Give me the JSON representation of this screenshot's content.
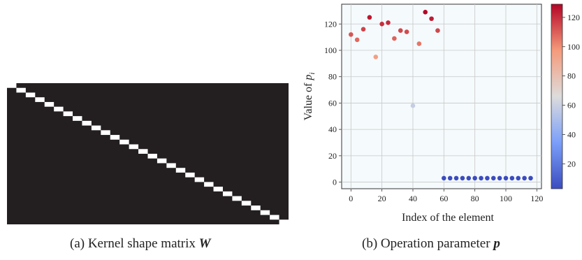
{
  "figure": {
    "caption_a": {
      "prefix": "(a) Kernel shape matrix ",
      "symbol": "W"
    },
    "caption_b": {
      "prefix": "(b) Operation parameter ",
      "symbol": "p"
    }
  },
  "chart_data": [
    {
      "type": "heatmap",
      "rows": 16,
      "cols": 30,
      "description_values": "identity-like diagonal: cell (r, c) = 1 when c == floor(r * 30 / 16) band; all other cells ~0",
      "diagonal_steps": 30,
      "background_color": "#231f20",
      "highlight_color": "#ffffff",
      "title": "",
      "xlabel": "",
      "ylabel": ""
    },
    {
      "type": "scatter",
      "title": "",
      "xlabel": "Index of the element",
      "ylabel_prefix": "Value of ",
      "ylabel_symbol": "p",
      "ylabel_subscript": "i",
      "xlim": [
        -6,
        123
      ],
      "ylim": [
        -5,
        135
      ],
      "xticks": [
        0,
        20,
        40,
        60,
        80,
        100,
        120
      ],
      "yticks": [
        0,
        20,
        40,
        60,
        80,
        100,
        120
      ],
      "grid": true,
      "x": [
        0,
        4,
        8,
        12,
        16,
        20,
        24,
        28,
        32,
        36,
        40,
        44,
        48,
        52,
        56,
        60,
        64,
        68,
        72,
        76,
        80,
        84,
        88,
        92,
        96,
        100,
        104,
        108,
        112,
        116
      ],
      "y": [
        112,
        108,
        116,
        125,
        95,
        120,
        121,
        109,
        115,
        114,
        58,
        105,
        129,
        124,
        115,
        3,
        3,
        3,
        3,
        3,
        3,
        3,
        3,
        3,
        3,
        3,
        3,
        3,
        3,
        3
      ],
      "colorbar": {
        "cmap": "coolwarm",
        "vmin": 3,
        "vmax": 129,
        "ticks": [
          20,
          40,
          60,
          80,
          100,
          120
        ]
      }
    }
  ]
}
